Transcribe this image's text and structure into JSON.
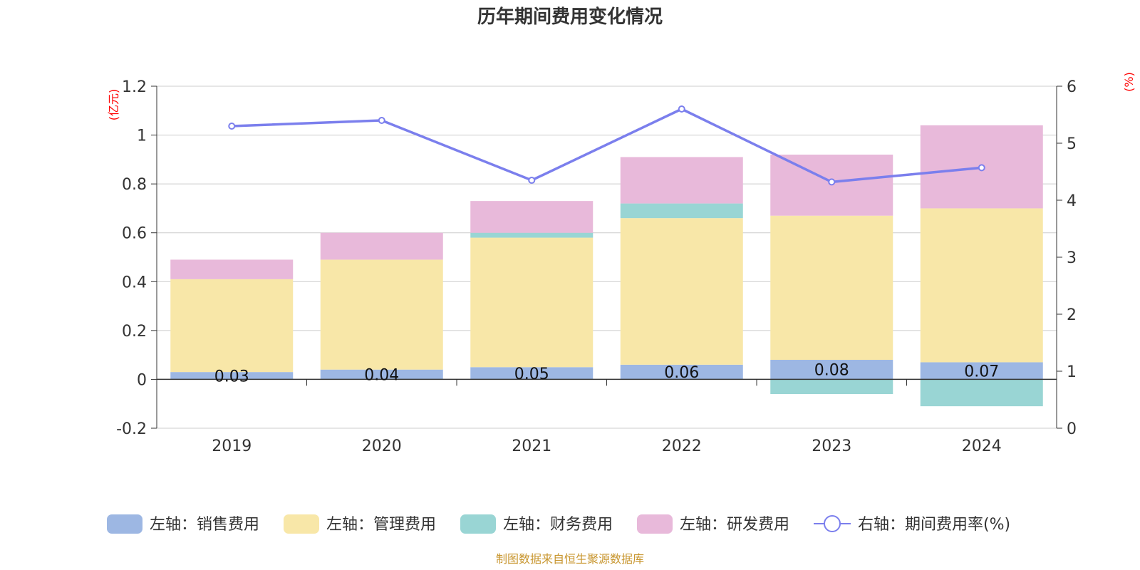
{
  "chart_data": {
    "type": "bar",
    "title": "历年期间费用变化情况",
    "categories": [
      "2019",
      "2020",
      "2021",
      "2022",
      "2023",
      "2024"
    ],
    "stacked": true,
    "left_axis": {
      "unit": "(亿元)",
      "ylim": [
        -0.2,
        1.2
      ],
      "ticks": [
        "-0.2",
        "0",
        "0.2",
        "0.4",
        "0.6",
        "0.8",
        "1",
        "1.2"
      ]
    },
    "right_axis": {
      "unit": "(%)",
      "ylim": [
        0,
        6
      ],
      "ticks": [
        "0",
        "1",
        "2",
        "3",
        "4",
        "5",
        "6"
      ]
    },
    "grid": true,
    "legend_placement": "bottom",
    "series": [
      {
        "name": "左轴：销售费用",
        "axis": "left",
        "type": "bar",
        "color": "#9db7e3",
        "values": [
          0.03,
          0.04,
          0.05,
          0.06,
          0.08,
          0.07
        ],
        "labels": [
          "0.03",
          "0.04",
          "0.05",
          "0.06",
          "0.08",
          "0.07"
        ]
      },
      {
        "name": "左轴：管理费用",
        "axis": "left",
        "type": "bar",
        "color": "#f8e7a8",
        "values": [
          0.38,
          0.45,
          0.53,
          0.6,
          0.59,
          0.63
        ]
      },
      {
        "name": "左轴：财务费用",
        "axis": "left",
        "type": "bar",
        "color": "#99d5d4",
        "values": [
          0.0,
          0.0,
          0.02,
          0.06,
          -0.06,
          -0.11
        ]
      },
      {
        "name": "左轴：研发费用",
        "axis": "left",
        "type": "bar",
        "color": "#e8b9da",
        "values": [
          0.08,
          0.11,
          0.13,
          0.19,
          0.25,
          0.34
        ]
      },
      {
        "name": "右轴：期间费用率(%)",
        "axis": "right",
        "type": "line",
        "color": "#7b7fed",
        "values": [
          5.3,
          5.4,
          4.35,
          5.6,
          4.32,
          4.57
        ]
      }
    ]
  },
  "source": "制图数据来自恒生聚源数据库"
}
